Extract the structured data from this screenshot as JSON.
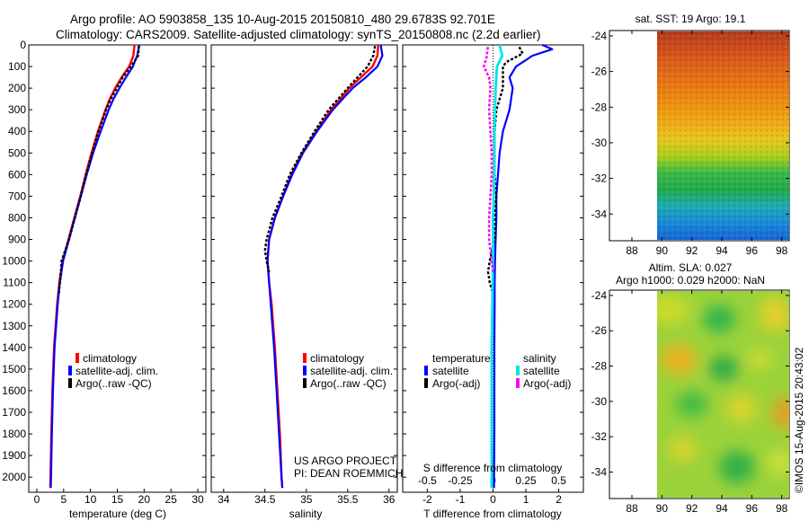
{
  "header": {
    "line1": "Argo profile: AO 5903858_135 10-Aug-2015 20150810_480 29.6783S 92.701E",
    "line2": "Climatology: CARS2009. Satellite-adjusted climatology: synTS_20150808.nc (2.2d earlier)"
  },
  "colors": {
    "climatology": "#ff0000",
    "satellite": "#0000ff",
    "argo": "#000000",
    "salinity_satellite": "#00e5e5",
    "salinity_argo": "#ff00ff"
  },
  "chart_data": [
    {
      "id": "temperature",
      "type": "line",
      "xlabel": "temperature (deg C)",
      "ylabel": "",
      "xlim": [
        -1.5,
        31.5
      ],
      "ylim": [
        2070,
        0
      ],
      "xticks": [
        0,
        5,
        10,
        15,
        20,
        25,
        30
      ],
      "yticks": [
        0,
        100,
        200,
        300,
        400,
        500,
        600,
        700,
        800,
        900,
        1000,
        1100,
        1200,
        1300,
        1400,
        1500,
        1600,
        1700,
        1800,
        1900,
        2000
      ],
      "legend": [
        "climatology",
        "satellite-adj. clim.",
        "Argo(..raw -QC)"
      ],
      "legend_position": "lower-right",
      "series": [
        {
          "name": "climatology",
          "depth": [
            0,
            50,
            100,
            150,
            200,
            250,
            300,
            400,
            500,
            600,
            700,
            800,
            900,
            1000,
            1100,
            1200,
            1400,
            1600,
            1800,
            2000,
            2050
          ],
          "values": [
            18.2,
            18.0,
            17.2,
            15.8,
            14.6,
            13.6,
            12.8,
            11.4,
            10.2,
            9.1,
            8.1,
            7.0,
            5.9,
            4.8,
            4.2,
            3.8,
            3.2,
            2.9,
            2.7,
            2.55,
            2.5
          ]
        },
        {
          "name": "satellite-adj. clim.",
          "depth": [
            0,
            50,
            100,
            150,
            200,
            250,
            300,
            400,
            500,
            600,
            700,
            800,
            900,
            1000,
            1100,
            1200,
            1400,
            1600,
            1800,
            2000,
            2050
          ],
          "values": [
            19.1,
            18.7,
            17.9,
            16.6,
            15.4,
            14.3,
            13.4,
            11.9,
            10.5,
            9.3,
            8.2,
            7.1,
            6.0,
            4.9,
            4.3,
            3.9,
            3.3,
            3.0,
            2.8,
            2.65,
            2.6
          ]
        },
        {
          "name": "Argo(..raw -QC)",
          "depth": [
            5,
            50,
            100,
            150,
            200,
            250,
            300,
            400,
            500,
            600,
            700,
            800,
            900,
            950,
            1000,
            1050,
            1100,
            1150
          ],
          "values": [
            19.0,
            18.9,
            17.5,
            16.0,
            14.9,
            13.8,
            12.9,
            11.5,
            10.3,
            9.2,
            8.2,
            7.1,
            6.0,
            5.3,
            4.6,
            4.5,
            4.3,
            4.1
          ]
        }
      ]
    },
    {
      "id": "salinity",
      "type": "line",
      "xlabel": "salinity",
      "ylabel": "",
      "xlim": [
        33.85,
        36.1
      ],
      "ylim": [
        2070,
        0
      ],
      "xticks": [
        34,
        34.5,
        35,
        35.5,
        36
      ],
      "xtick_labels": [
        "34",
        "34.5",
        "35",
        "35.5",
        "36"
      ],
      "legend": [
        "climatology",
        "satellite-adj. clim.",
        "Argo(..raw -QC)"
      ],
      "legend_position": "lower-right",
      "annotations": [
        "US ARGO PROJECT",
        "PI: DEAN ROEMMICH"
      ],
      "series": [
        {
          "name": "climatology",
          "depth": [
            0,
            50,
            100,
            150,
            200,
            300,
            400,
            500,
            600,
            700,
            800,
            900,
            1000,
            1100,
            1200,
            1400,
            1600,
            1800,
            2000,
            2050
          ],
          "values": [
            35.87,
            35.86,
            35.8,
            35.66,
            35.52,
            35.3,
            35.12,
            34.95,
            34.82,
            34.72,
            34.62,
            34.55,
            34.53,
            34.55,
            34.58,
            34.62,
            34.65,
            34.68,
            34.7,
            34.71
          ]
        },
        {
          "name": "satellite-adj. clim.",
          "depth": [
            0,
            50,
            100,
            150,
            200,
            300,
            400,
            500,
            600,
            700,
            800,
            900,
            1000,
            1100,
            1200,
            1400,
            1600,
            1800,
            2000,
            2050
          ],
          "values": [
            35.9,
            35.92,
            35.86,
            35.72,
            35.56,
            35.32,
            35.13,
            34.96,
            34.83,
            34.72,
            34.62,
            34.55,
            34.53,
            34.55,
            34.57,
            34.61,
            34.64,
            34.67,
            34.7,
            34.71
          ]
        },
        {
          "name": "Argo(..raw -QC)",
          "depth": [
            5,
            50,
            100,
            150,
            200,
            300,
            400,
            500,
            600,
            700,
            800,
            900,
            950,
            1000,
            1050
          ],
          "values": [
            35.83,
            35.81,
            35.74,
            35.62,
            35.5,
            35.27,
            35.1,
            34.94,
            34.8,
            34.7,
            34.59,
            34.52,
            34.5,
            34.52,
            34.55
          ]
        }
      ]
    },
    {
      "id": "differences",
      "type": "line",
      "xlabel": "T difference from climatology",
      "xlabel2": "S difference from climatology",
      "xlim": [
        -2.75,
        2.75
      ],
      "ylim": [
        2070,
        0
      ],
      "xticks": [
        -2,
        -1,
        0,
        1,
        2
      ],
      "s_xticks": [
        -0.5,
        -0.25,
        0,
        0.25,
        0.5
      ],
      "s_xtick_labels": [
        "-0.5",
        "-0.25",
        "0",
        "0.25",
        "0.5"
      ],
      "legend_groups": [
        {
          "title": "temperature",
          "items": [
            "satellite",
            "Argo(-adj)"
          ]
        },
        {
          "title": "salinity",
          "items": [
            "satellite",
            "Argo(-adj)"
          ]
        }
      ],
      "series": [
        {
          "name": "temperature satellite",
          "depth": [
            0,
            20,
            50,
            100,
            150,
            200,
            300,
            400,
            500,
            600,
            700,
            800,
            900,
            1000,
            1100,
            1200,
            1400,
            1600,
            1800,
            2000,
            2050
          ],
          "values": [
            1.5,
            1.8,
            1.2,
            0.7,
            0.5,
            0.6,
            0.5,
            0.3,
            0.2,
            0.15,
            0.1,
            0.1,
            0.08,
            0.06,
            0.05,
            0.05,
            0.04,
            0.04,
            0.04,
            0.03,
            0.03
          ]
        },
        {
          "name": "temperature Argo(-adj)",
          "depth": [
            10,
            40,
            80,
            100,
            150,
            200,
            300,
            400,
            500,
            600,
            700,
            800,
            900,
            1000,
            1050,
            1100,
            1150
          ],
          "values": [
            0.8,
            0.9,
            0.4,
            0.3,
            0.3,
            0.3,
            0.1,
            0.05,
            0.05,
            0.05,
            0.1,
            0.05,
            0.05,
            -0.1,
            -0.15,
            -0.1,
            0.0
          ]
        },
        {
          "name": "salinity satellite",
          "depth": [
            0,
            50,
            100,
            200,
            400,
            600,
            800,
            1000,
            1200,
            1400,
            1600,
            1800,
            2000,
            2050
          ],
          "values": [
            0.05,
            0.07,
            0.03,
            0.02,
            0.01,
            0.01,
            0.0,
            0.0,
            -0.005,
            -0.01,
            -0.01,
            -0.01,
            -0.01,
            -0.01
          ]
        },
        {
          "name": "salinity Argo(-adj)",
          "depth": [
            10,
            60,
            100,
            150,
            200,
            300,
            400,
            500,
            600,
            700,
            800,
            900,
            1000,
            1050
          ],
          "values": [
            -0.04,
            -0.05,
            -0.07,
            -0.03,
            -0.02,
            -0.03,
            -0.02,
            -0.01,
            -0.01,
            -0.02,
            -0.03,
            -0.03,
            -0.01,
            0.0
          ]
        }
      ]
    },
    {
      "id": "sst_map",
      "type": "heatmap",
      "title": "sat. SST: 19 Argo: 19.1",
      "xlim": [
        86.5,
        98.5
      ],
      "ylim": [
        -35.5,
        -23.7
      ],
      "xticks": [
        88,
        90,
        92,
        94,
        96,
        98
      ],
      "yticks": [
        -34,
        -32,
        -30,
        -28,
        -26,
        -24
      ],
      "data_extent_lon": [
        90,
        98.5
      ]
    },
    {
      "id": "sla_map",
      "type": "heatmap",
      "title": "Altim. SLA: 0.027",
      "subtitle": "Argo h1000: 0.029 h2000: NaN",
      "xlim": [
        86.5,
        98.5
      ],
      "ylim": [
        -35.5,
        -23.7
      ],
      "xticks": [
        88,
        90,
        92,
        94,
        96,
        98
      ],
      "yticks": [
        -34,
        -32,
        -30,
        -28,
        -26,
        -24
      ],
      "data_extent_lon": [
        90,
        98.5
      ]
    }
  ],
  "footer": {
    "credit": "©IMOS 15-Aug-2015 20:43:02"
  }
}
